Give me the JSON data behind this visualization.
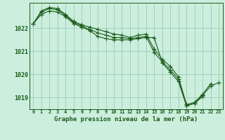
{
  "title": "Graphe pression niveau de la mer (hPa)",
  "background_color": "#cceedd",
  "grid_color": "#99ccbb",
  "line_color": "#1a5c1a",
  "x_labels": [
    "0",
    "1",
    "2",
    "3",
    "4",
    "5",
    "6",
    "7",
    "8",
    "9",
    "10",
    "11",
    "12",
    "13",
    "14",
    "15",
    "16",
    "17",
    "18",
    "19",
    "20",
    "21",
    "22",
    "23"
  ],
  "hours": [
    0,
    1,
    2,
    3,
    4,
    5,
    6,
    7,
    8,
    9,
    10,
    11,
    12,
    13,
    14,
    15,
    16,
    17,
    18,
    19,
    20,
    21,
    22,
    23
  ],
  "line1": [
    1022.2,
    1022.75,
    1022.9,
    1022.85,
    1022.6,
    1022.3,
    1022.15,
    1022.05,
    1021.95,
    1021.85,
    1021.75,
    1021.7,
    1021.6,
    1021.7,
    1021.75,
    1021.1,
    1020.65,
    1020.35,
    1019.9,
    1018.7,
    1018.8,
    1019.15,
    1019.6,
    null
  ],
  "line2": [
    1022.2,
    1022.7,
    1022.85,
    1022.8,
    1022.55,
    1022.25,
    1022.1,
    1021.95,
    1021.8,
    1021.7,
    1021.6,
    1021.6,
    1021.55,
    1021.6,
    1021.65,
    1020.95,
    1020.55,
    1020.2,
    1019.8,
    1018.65,
    1018.75,
    1019.1,
    1019.5,
    1019.65
  ],
  "line3": [
    1022.2,
    1022.6,
    1022.75,
    1022.7,
    1022.5,
    1022.2,
    1022.05,
    1021.9,
    1021.65,
    1021.55,
    1021.5,
    1021.5,
    1021.5,
    1021.55,
    1021.6,
    1021.6,
    1020.5,
    1020.1,
    1019.7,
    1018.65,
    1018.75,
    1019.05,
    null,
    null
  ],
  "ylim": [
    1018.5,
    1023.1
  ],
  "yticks": [
    1019,
    1020,
    1021,
    1022
  ],
  "marker": "+",
  "markersize": 4,
  "linewidth": 0.8
}
